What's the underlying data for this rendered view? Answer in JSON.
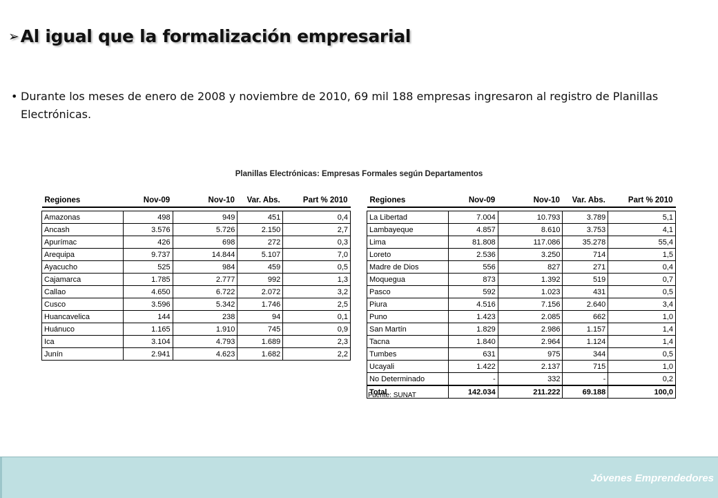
{
  "title": "Al igual que la formalización empresarial",
  "bullet": "Durante los meses de enero de 2008 y noviembre de 2010, 69 mil 188 empresas ingresaron al registro de Planillas Electrónicas.",
  "table_title": "Planillas Electrónicas: Empresas  Formales  según Departamentos",
  "table_headers": [
    "Regiones",
    "Nov-09",
    "Nov-10",
    "Var. Abs.",
    "Part % 2010"
  ],
  "left_rows": [
    [
      "Amazonas",
      "498",
      "949",
      "451",
      "0,4"
    ],
    [
      "Ancash",
      "3.576",
      "5.726",
      "2.150",
      "2,7"
    ],
    [
      "Apurímac",
      "426",
      "698",
      "272",
      "0,3"
    ],
    [
      "Arequipa",
      "9.737",
      "14.844",
      "5.107",
      "7,0"
    ],
    [
      "Ayacucho",
      "525",
      "984",
      "459",
      "0,5"
    ],
    [
      "Cajamarca",
      "1.785",
      "2.777",
      "992",
      "1,3"
    ],
    [
      "Callao",
      "4.650",
      "6.722",
      "2.072",
      "3,2"
    ],
    [
      "Cusco",
      "3.596",
      "5.342",
      "1.746",
      "2,5"
    ],
    [
      "Huancavelica",
      "144",
      "238",
      "94",
      "0,1"
    ],
    [
      "Huánuco",
      "1.165",
      "1.910",
      "745",
      "0,9"
    ],
    [
      "Ica",
      "3.104",
      "4.793",
      "1.689",
      "2,3"
    ],
    [
      "Junín",
      "2.941",
      "4.623",
      "1.682",
      "2,2"
    ]
  ],
  "right_rows": [
    [
      "La Libertad",
      "7.004",
      "10.793",
      "3.789",
      "5,1"
    ],
    [
      "Lambayeque",
      "4.857",
      "8.610",
      "3.753",
      "4,1"
    ],
    [
      "Lima",
      "81.808",
      "117.086",
      "35.278",
      "55,4"
    ],
    [
      "Loreto",
      "2.536",
      "3.250",
      "714",
      "1,5"
    ],
    [
      "Madre de Dios",
      "556",
      "827",
      "271",
      "0,4"
    ],
    [
      "Moquegua",
      "873",
      "1.392",
      "519",
      "0,7"
    ],
    [
      "Pasco",
      "592",
      "1.023",
      "431",
      "0,5"
    ],
    [
      "Piura",
      "4.516",
      "7.156",
      "2.640",
      "3,4"
    ],
    [
      "Puno",
      "1.423",
      "2.085",
      "662",
      "1,0"
    ],
    [
      "San Martín",
      "1.829",
      "2.986",
      "1.157",
      "1,4"
    ],
    [
      "Tacna",
      "1.840",
      "2.964",
      "1.124",
      "1,4"
    ],
    [
      "Tumbes",
      "631",
      "975",
      "344",
      "0,5"
    ],
    [
      "Ucayali",
      "1.422",
      "2.137",
      "715",
      "1,0"
    ],
    [
      "No Determinado",
      "-",
      "332",
      "-",
      "0,2"
    ]
  ],
  "total_row": [
    "Total",
    "142.034",
    "211.222",
    "69.188",
    "100,0"
  ],
  "source": "Fuente: SUNAT",
  "footer": "Jóvenes Emprendedores",
  "colors": {
    "footer_bg": "#bfe0e2",
    "footer_text": "#ffffff",
    "title_text": "#111111"
  }
}
